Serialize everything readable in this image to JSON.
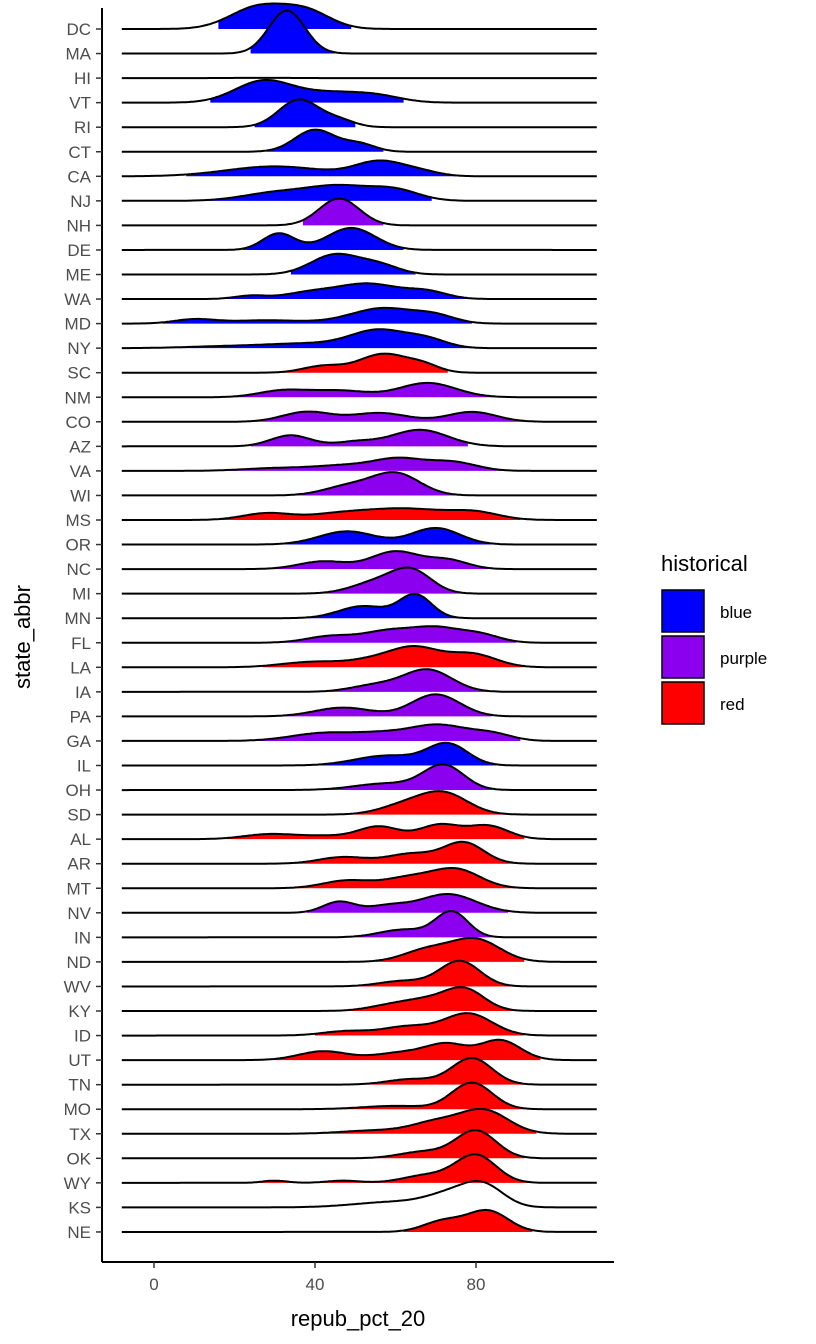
{
  "chart_data": {
    "type": "ridgeline",
    "xlabel": "repub_pct_20",
    "ylabel": "state_abbr",
    "xlim": [
      -8,
      110
    ],
    "x_ticks": [
      0,
      40,
      80
    ],
    "x_tick_labels": [
      "0",
      "40",
      "80"
    ],
    "grid": false,
    "legend": {
      "title": "historical",
      "placement": "right",
      "entries": [
        {
          "label": "blue",
          "color": "#0000FF"
        },
        {
          "label": "purple",
          "color": "#8B00EE"
        },
        {
          "label": "red",
          "color": "#FF0000"
        }
      ]
    },
    "range_rule": "each state's ridge is filled only between the smallest and largest observed value",
    "states": [
      {
        "abbr": "DC",
        "group": "blue",
        "min": 16,
        "max": 49,
        "peaks": [
          [
            26,
            7,
            1.0
          ],
          [
            38,
            6,
            0.75
          ]
        ]
      },
      {
        "abbr": "MA",
        "group": "blue",
        "min": 24,
        "max": 45,
        "peaks": [
          [
            33,
            4.5,
            1.95
          ]
        ]
      },
      {
        "abbr": "HI",
        "group": "blue",
        "min": 0,
        "max": 0,
        "peaks": []
      },
      {
        "abbr": "VT",
        "group": "blue",
        "min": 14,
        "max": 62,
        "peaks": [
          [
            27,
            7,
            0.95
          ],
          [
            44,
            9,
            0.45
          ],
          [
            56,
            6,
            0.2
          ]
        ]
      },
      {
        "abbr": "RI",
        "group": "blue",
        "min": 25,
        "max": 50,
        "peaks": [
          [
            36,
            5,
            1.25
          ],
          [
            46,
            4,
            0.3
          ]
        ]
      },
      {
        "abbr": "CT",
        "group": "blue",
        "min": 28,
        "max": 57,
        "peaks": [
          [
            40,
            5,
            1.0
          ],
          [
            51,
            4,
            0.35
          ]
        ]
      },
      {
        "abbr": "CA",
        "group": "blue",
        "min": 8,
        "max": 75,
        "peaks": [
          [
            30,
            12,
            0.45
          ],
          [
            56,
            6,
            0.65
          ],
          [
            66,
            5,
            0.2
          ]
        ]
      },
      {
        "abbr": "NJ",
        "group": "blue",
        "min": 12,
        "max": 69,
        "peaks": [
          [
            30,
            8,
            0.35
          ],
          [
            46,
            8,
            0.65
          ],
          [
            60,
            6,
            0.45
          ]
        ]
      },
      {
        "abbr": "NH",
        "group": "purple",
        "min": 37,
        "max": 57,
        "peaks": [
          [
            46,
            5,
            1.22
          ]
        ]
      },
      {
        "abbr": "DE",
        "group": "blue",
        "min": 22,
        "max": 62,
        "peaks": [
          [
            31,
            4,
            0.75
          ],
          [
            49,
            6,
            1.0
          ]
        ]
      },
      {
        "abbr": "ME",
        "group": "blue",
        "min": 34,
        "max": 65,
        "peaks": [
          [
            45,
            6,
            0.9
          ],
          [
            56,
            5,
            0.4
          ]
        ]
      },
      {
        "abbr": "WA",
        "group": "blue",
        "min": 18,
        "max": 78,
        "peaks": [
          [
            24,
            4,
            0.15
          ],
          [
            38,
            6,
            0.25
          ],
          [
            53,
            8,
            0.7
          ],
          [
            68,
            5,
            0.3
          ]
        ]
      },
      {
        "abbr": "MD",
        "group": "blue",
        "min": 2,
        "max": 79,
        "peaks": [
          [
            10,
            5,
            0.18
          ],
          [
            28,
            10,
            0.15
          ],
          [
            57,
            8,
            0.7
          ],
          [
            70,
            5,
            0.3
          ]
        ]
      },
      {
        "abbr": "NY",
        "group": "blue",
        "min": 1,
        "max": 80,
        "peaks": [
          [
            18,
            10,
            0.08
          ],
          [
            38,
            10,
            0.2
          ],
          [
            56,
            7,
            0.8
          ],
          [
            68,
            5,
            0.35
          ]
        ]
      },
      {
        "abbr": "SC",
        "group": "red",
        "min": 32,
        "max": 73,
        "peaks": [
          [
            42,
            5,
            0.3
          ],
          [
            57,
            6,
            0.85
          ],
          [
            67,
            4,
            0.3
          ]
        ]
      },
      {
        "abbr": "NM",
        "group": "purple",
        "min": 10,
        "max": 85,
        "peaks": [
          [
            32,
            6,
            0.3
          ],
          [
            46,
            7,
            0.3
          ],
          [
            68,
            7,
            0.65
          ]
        ]
      },
      {
        "abbr": "CO",
        "group": "purple",
        "min": 16,
        "max": 92,
        "peaks": [
          [
            38,
            6,
            0.45
          ],
          [
            56,
            7,
            0.4
          ],
          [
            79,
            6,
            0.45
          ]
        ]
      },
      {
        "abbr": "AZ",
        "group": "purple",
        "min": 24,
        "max": 78,
        "peaks": [
          [
            34,
            5,
            0.5
          ],
          [
            50,
            5,
            0.2
          ],
          [
            66,
            7,
            0.75
          ]
        ]
      },
      {
        "abbr": "VA",
        "group": "purple",
        "min": 12,
        "max": 88,
        "peaks": [
          [
            30,
            8,
            0.12
          ],
          [
            48,
            8,
            0.25
          ],
          [
            61,
            6,
            0.5
          ],
          [
            74,
            6,
            0.4
          ]
        ]
      },
      {
        "abbr": "WI",
        "group": "purple",
        "min": 32,
        "max": 76,
        "peaks": [
          [
            48,
            6,
            0.4
          ],
          [
            60,
            6,
            1.0
          ]
        ]
      },
      {
        "abbr": "MS",
        "group": "red",
        "min": 11,
        "max": 91,
        "peaks": [
          [
            28,
            6,
            0.3
          ],
          [
            46,
            8,
            0.25
          ],
          [
            63,
            10,
            0.5
          ],
          [
            80,
            6,
            0.3
          ]
        ]
      },
      {
        "abbr": "OR",
        "group": "blue",
        "min": 22,
        "max": 84,
        "peaks": [
          [
            48,
            7,
            0.6
          ],
          [
            70,
            6,
            0.75
          ]
        ]
      },
      {
        "abbr": "NC",
        "group": "purple",
        "min": 28,
        "max": 83,
        "peaks": [
          [
            42,
            6,
            0.35
          ],
          [
            60,
            6,
            0.8
          ],
          [
            73,
            5,
            0.4
          ]
        ]
      },
      {
        "abbr": "MI",
        "group": "purple",
        "min": 42,
        "max": 80,
        "peaks": [
          [
            55,
            6,
            0.5
          ],
          [
            64,
            5,
            1.0
          ]
        ]
      },
      {
        "abbr": "MN",
        "group": "blue",
        "min": 38,
        "max": 78,
        "peaks": [
          [
            52,
            6,
            0.55
          ],
          [
            65,
            4,
            1.05
          ]
        ]
      },
      {
        "abbr": "FL",
        "group": "purple",
        "min": 30,
        "max": 90,
        "peaks": [
          [
            44,
            6,
            0.3
          ],
          [
            58,
            6,
            0.5
          ],
          [
            70,
            6,
            0.65
          ],
          [
            81,
            5,
            0.35
          ]
        ]
      },
      {
        "abbr": "LA",
        "group": "red",
        "min": 27,
        "max": 92,
        "peaks": [
          [
            40,
            8,
            0.25
          ],
          [
            55,
            6,
            0.3
          ],
          [
            65,
            6,
            0.85
          ],
          [
            79,
            6,
            0.6
          ]
        ]
      },
      {
        "abbr": "IA",
        "group": "purple",
        "min": 43,
        "max": 84,
        "peaks": [
          [
            55,
            6,
            0.3
          ],
          [
            68,
            6,
            1.0
          ]
        ]
      },
      {
        "abbr": "PA",
        "group": "purple",
        "min": 28,
        "max": 84,
        "peaks": [
          [
            47,
            7,
            0.4
          ],
          [
            70,
            6,
            1.0
          ]
        ]
      },
      {
        "abbr": "GA",
        "group": "purple",
        "min": 22,
        "max": 91,
        "peaks": [
          [
            42,
            8,
            0.35
          ],
          [
            57,
            7,
            0.3
          ],
          [
            71,
            7,
            0.7
          ],
          [
            84,
            5,
            0.3
          ]
        ]
      },
      {
        "abbr": "IL",
        "group": "blue",
        "min": 38,
        "max": 85,
        "peaks": [
          [
            58,
            8,
            0.45
          ],
          [
            73,
            5,
            0.95
          ]
        ]
      },
      {
        "abbr": "OH",
        "group": "purple",
        "min": 38,
        "max": 84,
        "peaks": [
          [
            58,
            8,
            0.3
          ],
          [
            72,
            5,
            1.1
          ]
        ]
      },
      {
        "abbr": "SD",
        "group": "red",
        "min": 50,
        "max": 90,
        "peaks": [
          [
            62,
            6,
            0.4
          ],
          [
            72,
            6,
            0.95
          ]
        ]
      },
      {
        "abbr": "AL",
        "group": "red",
        "min": 18,
        "max": 92,
        "peaks": [
          [
            28,
            6,
            0.2
          ],
          [
            42,
            8,
            0.15
          ],
          [
            56,
            5,
            0.55
          ],
          [
            71,
            5,
            0.65
          ],
          [
            83,
            5,
            0.6
          ]
        ]
      },
      {
        "abbr": "AR",
        "group": "red",
        "min": 35,
        "max": 90,
        "peaks": [
          [
            47,
            6,
            0.3
          ],
          [
            64,
            6,
            0.45
          ],
          [
            77,
            5,
            0.95
          ]
        ]
      },
      {
        "abbr": "MT",
        "group": "red",
        "min": 32,
        "max": 90,
        "peaks": [
          [
            48,
            6,
            0.35
          ],
          [
            63,
            6,
            0.45
          ],
          [
            75,
            6,
            0.85
          ]
        ]
      },
      {
        "abbr": "NV",
        "group": "purple",
        "min": 38,
        "max": 88,
        "peaks": [
          [
            46,
            4,
            0.5
          ],
          [
            58,
            5,
            0.3
          ],
          [
            73,
            7,
            0.85
          ]
        ]
      },
      {
        "abbr": "IN",
        "group": "purple",
        "min": 50,
        "max": 84,
        "peaks": [
          [
            62,
            6,
            0.35
          ],
          [
            74,
            4,
            1.15
          ]
        ]
      },
      {
        "abbr": "ND",
        "group": "red",
        "min": 55,
        "max": 92,
        "peaks": [
          [
            68,
            6,
            0.55
          ],
          [
            80,
            6,
            1.0
          ]
        ]
      },
      {
        "abbr": "WV",
        "group": "red",
        "min": 48,
        "max": 92,
        "peaks": [
          [
            62,
            6,
            0.25
          ],
          [
            76,
            5,
            1.15
          ]
        ]
      },
      {
        "abbr": "KY",
        "group": "red",
        "min": 42,
        "max": 92,
        "peaks": [
          [
            60,
            6,
            0.3
          ],
          [
            68,
            5,
            0.35
          ],
          [
            77,
            5,
            1.0
          ]
        ]
      },
      {
        "abbr": "ID",
        "group": "red",
        "min": 40,
        "max": 92,
        "peaks": [
          [
            48,
            6,
            0.2
          ],
          [
            63,
            6,
            0.4
          ],
          [
            78,
            6,
            1.0
          ]
        ]
      },
      {
        "abbr": "UT",
        "group": "red",
        "min": 30,
        "max": 96,
        "peaks": [
          [
            42,
            6,
            0.4
          ],
          [
            62,
            7,
            0.35
          ],
          [
            73,
            5,
            0.65
          ],
          [
            86,
            5,
            0.9
          ]
        ]
      },
      {
        "abbr": "TN",
        "group": "red",
        "min": 50,
        "max": 92,
        "peaks": [
          [
            64,
            6,
            0.25
          ],
          [
            79,
            5,
            1.2
          ]
        ]
      },
      {
        "abbr": "MO",
        "group": "red",
        "min": 40,
        "max": 92,
        "peaks": [
          [
            60,
            8,
            0.15
          ],
          [
            79,
            5,
            1.2
          ]
        ]
      },
      {
        "abbr": "TX",
        "group": "red",
        "min": 38,
        "max": 95,
        "peaks": [
          [
            55,
            8,
            0.15
          ],
          [
            70,
            6,
            0.5
          ],
          [
            82,
            6,
            1.05
          ]
        ]
      },
      {
        "abbr": "OK",
        "group": "red",
        "min": 50,
        "max": 92,
        "peaks": [
          [
            67,
            6,
            0.3
          ],
          [
            80,
            5,
            1.25
          ]
        ]
      },
      {
        "abbr": "WY",
        "group": "red",
        "min": 26,
        "max": 94,
        "peaks": [
          [
            30,
            3,
            0.1
          ],
          [
            47,
            4,
            0.1
          ],
          [
            68,
            6,
            0.35
          ],
          [
            80,
            5,
            1.25
          ]
        ]
      },
      {
        "abbr": "KS",
        "group": "red",
        "min": 0,
        "max": 0,
        "peaks": []
      },
      {
        "abbr": "NE",
        "group": "red",
        "min": 62,
        "max": 94,
        "peaks": [
          [
            72,
            5,
            0.5
          ],
          [
            83,
            5,
            0.95
          ]
        ]
      }
    ],
    "outline_peaks": {
      "HI": [
        [
          27,
          8,
          0.01
        ]
      ],
      "KS": [
        [
          60,
          10,
          0.25
        ],
        [
          74,
          6,
          0.55
        ],
        [
          82,
          5,
          0.9
        ]
      ]
    }
  }
}
